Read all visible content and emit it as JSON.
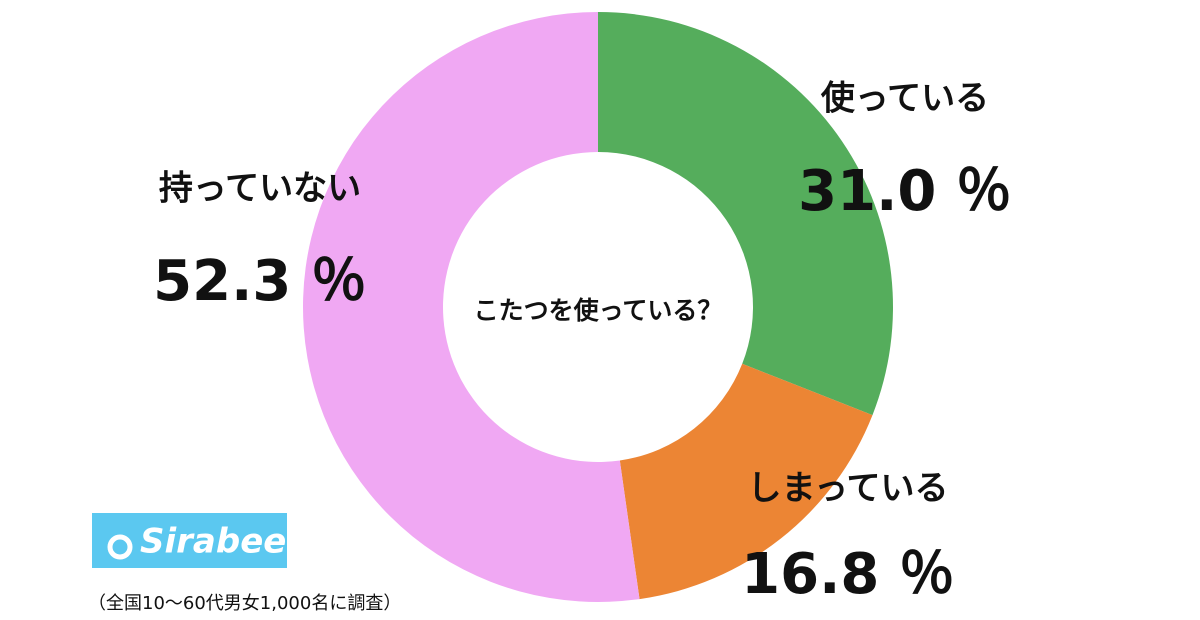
{
  "chart_data": {
    "type": "pie",
    "donut": true,
    "title": "こたつを使っている？",
    "categories": [
      "使っている",
      "しまっている",
      "持っていない"
    ],
    "values": [
      31.0,
      16.8,
      52.3
    ],
    "value_labels": [
      "31.0 ％",
      "16.8 ％",
      "52.3 ％"
    ],
    "colors": [
      "#55ad5c",
      "#ec8534",
      "#f0a8f3"
    ]
  },
  "logo": "Sirabee",
  "note": "（全国10〜60代男女1,000名に調査）"
}
